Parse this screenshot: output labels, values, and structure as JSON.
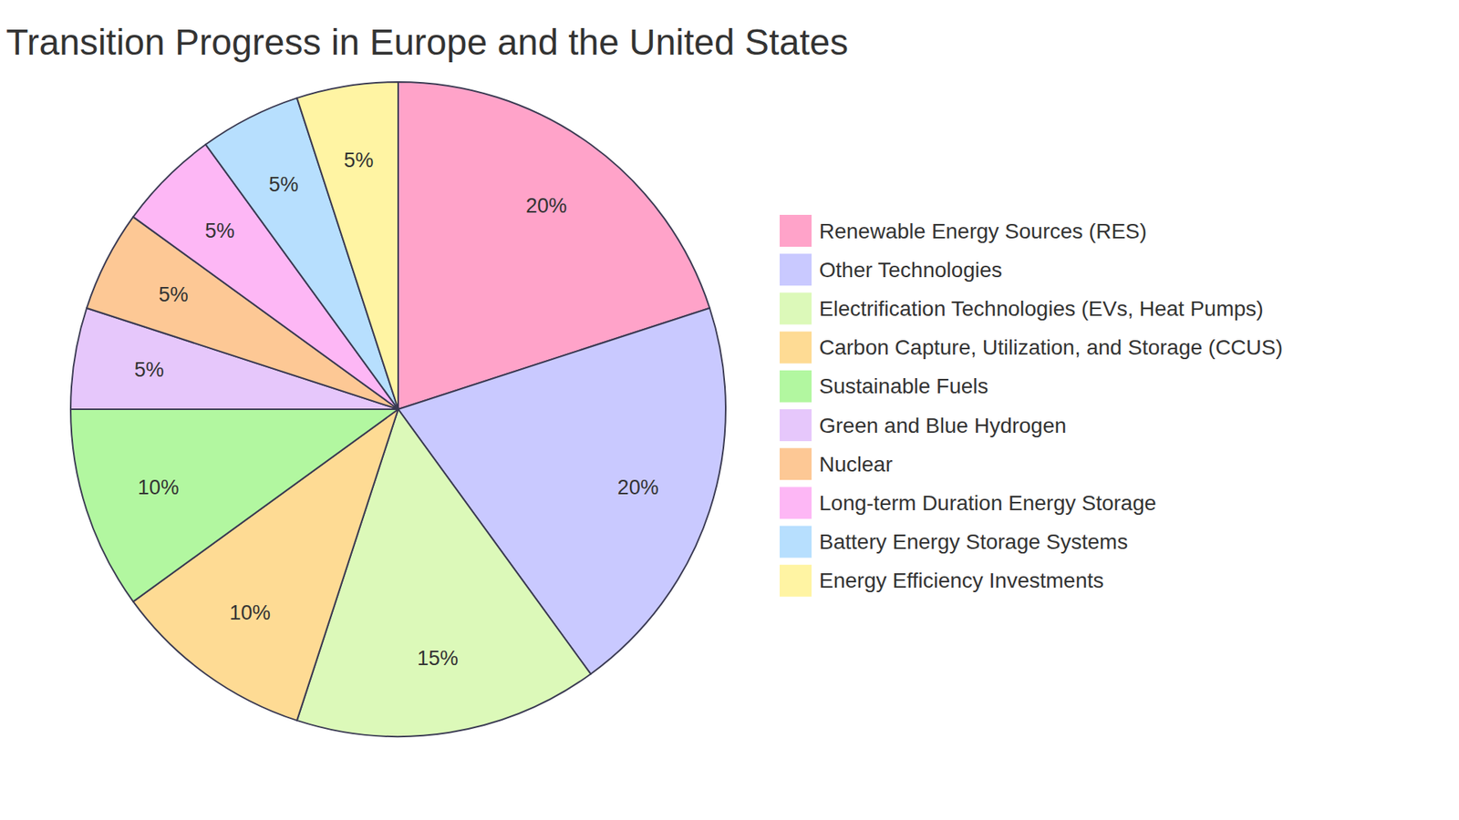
{
  "chart_data": {
    "type": "pie",
    "title": "Transition Progress in Europe and the United States",
    "categories": [
      "Renewable Energy Sources (RES)",
      "Other Technologies",
      "Electrification Technologies (EVs, Heat Pumps)",
      "Carbon Capture, Utilization, and Storage (CCUS)",
      "Sustainable Fuels",
      "Green and Blue Hydrogen",
      "Nuclear",
      "Long-term Duration Energy Storage",
      "Battery Energy Storage Systems",
      "Energy Efficiency Investments"
    ],
    "values": [
      20,
      20,
      15,
      10,
      10,
      5,
      5,
      5,
      5,
      5
    ],
    "value_labels": [
      "20%",
      "20%",
      "15%",
      "10%",
      "10%",
      "5%",
      "5%",
      "5%",
      "5%",
      "5%"
    ],
    "colors": [
      "#ffa3c9",
      "#c9c9ff",
      "#dcf9b9",
      "#fedb94",
      "#b2f7a0",
      "#e6c7fb",
      "#fdc895",
      "#fdb7f5",
      "#b7dffe",
      "#fff4a3"
    ],
    "data_labels": true,
    "legend": "right"
  }
}
